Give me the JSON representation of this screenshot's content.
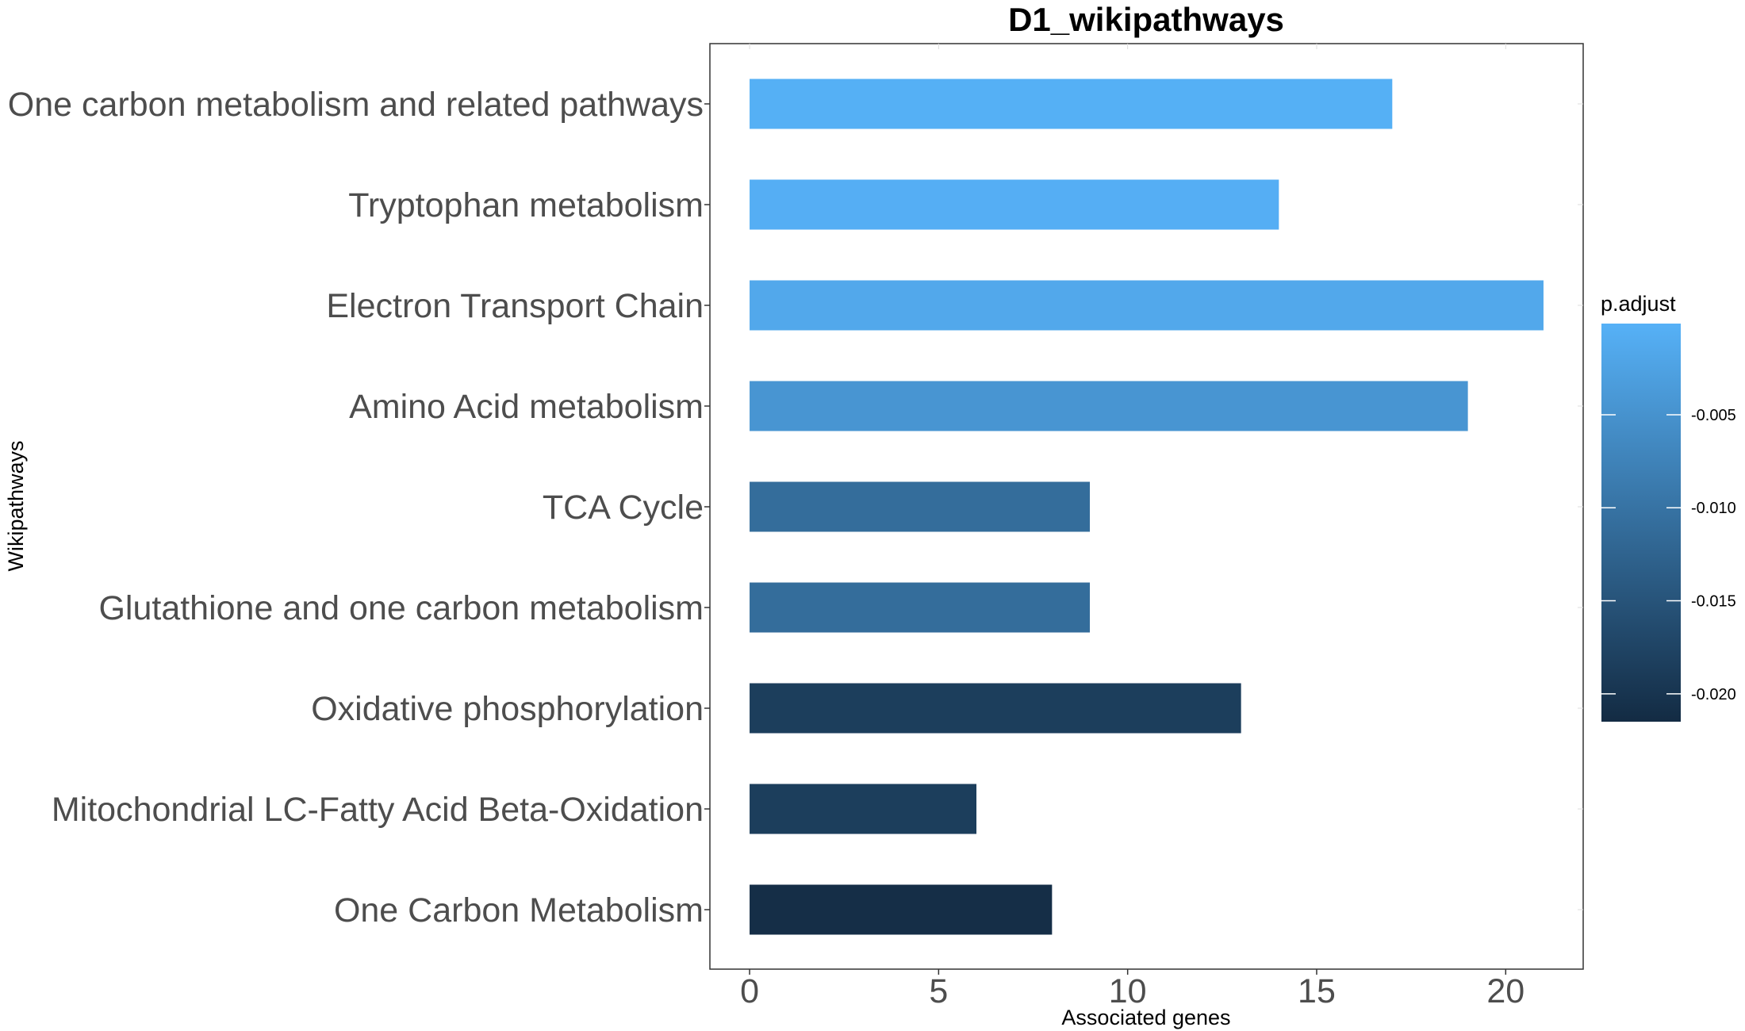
{
  "chart_data": {
    "type": "bar",
    "orientation": "horizontal",
    "title": "D1_wikipathways",
    "xlabel": "Associated genes",
    "ylabel": "Wikipathways",
    "categories": [
      "One carbon metabolism and related pathways",
      "Tryptophan metabolism",
      "Electron Transport Chain",
      "Amino Acid metabolism",
      "TCA Cycle",
      "Glutathione and one carbon metabolism",
      "Oxidative phosphorylation",
      "Mitochondrial LC-Fatty Acid Beta-Oxidation",
      "One Carbon Metabolism"
    ],
    "values": [
      17,
      14,
      21,
      19,
      9,
      9,
      13,
      6,
      8
    ],
    "p_adjust": [
      -0.0003,
      -0.0005,
      -0.0015,
      -0.0045,
      -0.011,
      -0.011,
      -0.0185,
      -0.0185,
      -0.021
    ],
    "xlim": [
      -1.05,
      22.05
    ],
    "x_ticks": [
      "0",
      "5",
      "10",
      "15",
      "20"
    ],
    "x_tick_values": [
      0,
      5,
      10,
      15,
      20
    ],
    "grid": false,
    "legend": {
      "title": "p.adjust",
      "placement": "right",
      "range": [
        -0.0215,
        -0.0001
      ],
      "ticks": [
        "-0.005",
        "-0.010",
        "-0.015",
        "-0.020"
      ],
      "tick_values": [
        -0.005,
        -0.01,
        -0.015,
        -0.02
      ],
      "color_low": "#132b43",
      "color_high": "#56b1f7"
    }
  }
}
